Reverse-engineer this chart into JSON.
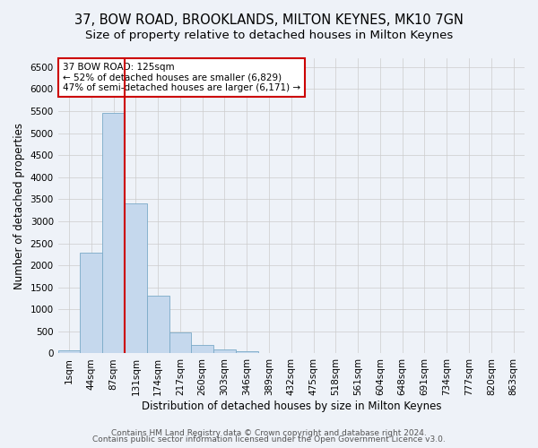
{
  "title": "37, BOW ROAD, BROOKLANDS, MILTON KEYNES, MK10 7GN",
  "subtitle": "Size of property relative to detached houses in Milton Keynes",
  "xlabel": "Distribution of detached houses by size in Milton Keynes",
  "ylabel": "Number of detached properties",
  "bin_edges": [
    "1sqm",
    "44sqm",
    "87sqm",
    "131sqm",
    "174sqm",
    "217sqm",
    "260sqm",
    "303sqm",
    "346sqm",
    "389sqm",
    "432sqm",
    "475sqm",
    "518sqm",
    "561sqm",
    "604sqm",
    "648sqm",
    "691sqm",
    "734sqm",
    "777sqm",
    "820sqm",
    "863sqm"
  ],
  "bar_values": [
    75,
    2280,
    5450,
    3400,
    1310,
    480,
    200,
    100,
    60,
    0,
    0,
    0,
    0,
    0,
    0,
    0,
    0,
    0,
    0,
    0,
    0
  ],
  "bar_color": "#c5d8ed",
  "bar_edge_color": "#7aaac8",
  "marker_bin_edge": 3,
  "marker_label": "37 BOW ROAD: 125sqm",
  "annotation_line1": "← 52% of detached houses are smaller (6,829)",
  "annotation_line2": "47% of semi-detached houses are larger (6,171) →",
  "annotation_box_color": "#ffffff",
  "annotation_box_edge": "#cc0000",
  "marker_line_color": "#cc0000",
  "ylim_max": 6700,
  "yticks": [
    0,
    500,
    1000,
    1500,
    2000,
    2500,
    3000,
    3500,
    4000,
    4500,
    5000,
    5500,
    6000,
    6500
  ],
  "footer_line1": "Contains HM Land Registry data © Crown copyright and database right 2024.",
  "footer_line2": "Contains public sector information licensed under the Open Government Licence v3.0.",
  "bg_color": "#eef2f8",
  "plot_bg_color": "#eef2f8",
  "title_fontsize": 10.5,
  "subtitle_fontsize": 9.5,
  "axis_label_fontsize": 8.5,
  "tick_fontsize": 7.5,
  "footer_fontsize": 6.5
}
